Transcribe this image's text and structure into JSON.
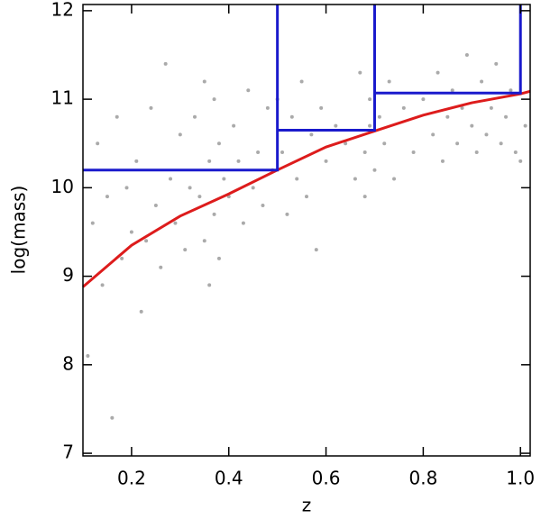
{
  "chart_data": {
    "type": "scatter",
    "x_label": "z",
    "y_label": "log(mass)",
    "xlim": [
      0.1,
      1.02
    ],
    "ylim": [
      6.97,
      12.07
    ],
    "xticks": [
      0.2,
      0.4,
      0.6,
      0.8,
      {
        "value": 1,
        "label": "1.0"
      }
    ],
    "yticks": [
      7,
      8,
      9,
      10,
      11,
      12
    ],
    "series": [
      {
        "mode": "markers",
        "color": "#aaaaaa",
        "x": [
          0.11,
          0.12,
          0.13,
          0.14,
          0.15,
          0.16,
          0.17,
          0.18,
          0.19,
          0.2,
          0.21,
          0.22,
          0.23,
          0.24,
          0.25,
          0.26,
          0.27,
          0.28,
          0.29,
          0.3,
          0.31,
          0.32,
          0.33,
          0.34,
          0.35,
          0.35,
          0.36,
          0.36,
          0.37,
          0.37,
          0.38,
          0.38,
          0.39,
          0.4,
          0.41,
          0.42,
          0.43,
          0.44,
          0.45,
          0.46,
          0.47,
          0.48,
          0.49,
          0.5,
          0.51,
          0.52,
          0.53,
          0.54,
          0.55,
          0.56,
          0.57,
          0.58,
          0.59,
          0.6,
          0.62,
          0.64,
          0.66,
          0.67,
          0.68,
          0.68,
          0.69,
          0.69,
          0.7,
          0.71,
          0.72,
          0.73,
          0.74,
          0.76,
          0.78,
          0.8,
          0.82,
          0.83,
          0.84,
          0.85,
          0.86,
          0.87,
          0.88,
          0.89,
          0.9,
          0.91,
          0.92,
          0.93,
          0.94,
          0.95,
          0.96,
          0.97,
          0.98,
          0.99,
          1.0,
          1.01
        ],
        "values": [
          8.1,
          9.6,
          10.5,
          8.9,
          9.9,
          7.4,
          10.8,
          9.2,
          10.0,
          9.5,
          10.3,
          8.6,
          9.4,
          10.9,
          9.8,
          9.1,
          11.4,
          10.1,
          9.6,
          10.6,
          9.3,
          10.0,
          10.8,
          9.9,
          9.4,
          11.2,
          10.3,
          8.9,
          9.7,
          11.0,
          10.5,
          9.2,
          10.1,
          9.9,
          10.7,
          10.3,
          9.6,
          11.1,
          10.0,
          10.4,
          9.8,
          10.9,
          10.2,
          11.0,
          10.4,
          9.7,
          10.8,
          10.1,
          11.2,
          9.9,
          10.6,
          9.3,
          10.9,
          10.3,
          10.7,
          10.5,
          10.1,
          11.3,
          10.4,
          9.9,
          11.0,
          10.7,
          10.2,
          10.8,
          10.5,
          11.2,
          10.1,
          10.9,
          10.4,
          11.0,
          10.6,
          11.3,
          10.3,
          10.8,
          11.1,
          10.5,
          10.9,
          11.5,
          10.7,
          10.4,
          11.2,
          10.6,
          10.9,
          11.4,
          10.5,
          10.8,
          11.1,
          10.4,
          10.3,
          10.7
        ]
      },
      {
        "mode": "lines",
        "color": "#dd1c1c",
        "x": [
          0.1,
          0.2,
          0.3,
          0.4,
          0.5,
          0.6,
          0.7,
          0.8,
          0.9,
          1.0,
          1.02
        ],
        "values": [
          8.88,
          9.35,
          9.68,
          9.93,
          10.2,
          10.46,
          10.64,
          10.82,
          10.96,
          11.06,
          11.09
        ]
      },
      {
        "mode": "lines",
        "color": "#1a1acc",
        "x": [
          0.1,
          0.5,
          0.5,
          null,
          0.5,
          0.7,
          0.7,
          null,
          0.7,
          1.0,
          1.0
        ],
        "values": [
          10.2,
          10.2,
          12.07,
          null,
          10.65,
          10.65,
          12.07,
          null,
          11.07,
          11.07,
          12.07
        ]
      }
    ]
  }
}
